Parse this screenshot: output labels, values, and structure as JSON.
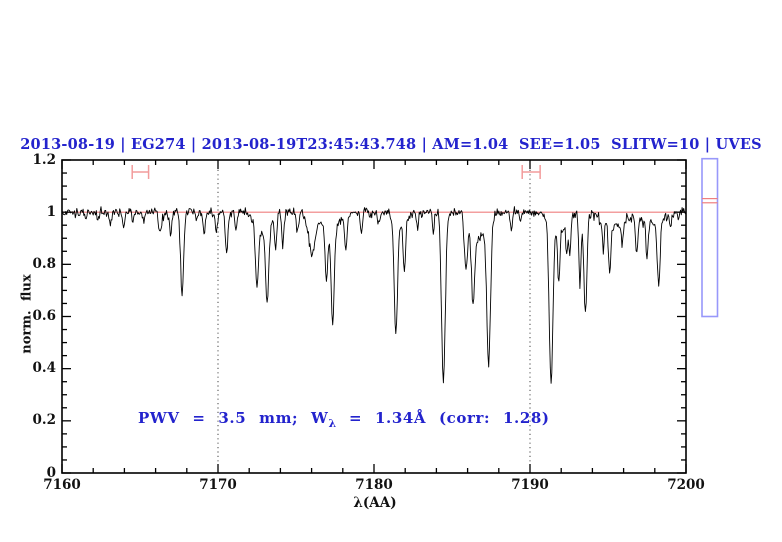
{
  "header": {
    "title": "2013-08-19 | EG274 | 2013-08-19T23:45:43.748 | AM=1.04  SEE=1.05  SLITW=10 | UVES",
    "color": "#2323cd"
  },
  "annotation": {
    "prefix": "PWV = 3.5 mm; W",
    "sub": "λ",
    "suffix": " = 1.34Å (corr: 1.28)",
    "color": "#2323cd"
  },
  "colors": {
    "accent_blue": "#2323cd",
    "spectrum": "#000000",
    "continuum_red": "#ef7f7f",
    "marker_red": "#f29b9b",
    "gauge_border_blue": "#9898fa",
    "guide_dotted": "#444444",
    "frame": "#000000",
    "background": "#ffffff"
  },
  "chart_data": {
    "type": "line",
    "title": "2013-08-19 | EG274 | 2013-08-19T23:45:43.748 | AM=1.04  SEE=1.05  SLITW=10 | UVES",
    "xlabel": "λ(AA)",
    "ylabel": "norm. flux",
    "xlim": [
      7160,
      7200
    ],
    "ylim": [
      0,
      1.2
    ],
    "grid": false,
    "legend": "none",
    "x_tick_labels": [
      "7160",
      "7170",
      "7180",
      "7190",
      "7200"
    ],
    "x_major_ticks": [
      7160,
      7170,
      7180,
      7190,
      7200
    ],
    "x_minor_step": 2,
    "y_tick_labels": [
      "0",
      "0.2",
      "0.4",
      "0.6",
      "0.8",
      "1",
      "1.2"
    ],
    "y_major_ticks": [
      0,
      0.2,
      0.4,
      0.6,
      0.8,
      1.0,
      1.2
    ],
    "y_minor_step": 0.05,
    "continuum_level": 1.0,
    "dotted_guides_x": [
      7170,
      7190
    ],
    "range_markers": [
      {
        "x_start": 7164.5,
        "x_end": 7165.55,
        "y": 1.154
      },
      {
        "x_start": 7189.5,
        "x_end": 7190.65,
        "y": 1.154
      }
    ],
    "side_gauge": {
      "top_flux": 1.205,
      "bottom_flux": 0.6,
      "line_flux": [
        1.052,
        1.036
      ]
    },
    "noise_sigma": 0.009,
    "noise_seed": 1337,
    "sample_step_aa": 0.05,
    "absorption_lines": [
      {
        "center": 7161.5,
        "min_flux": 0.978,
        "sigma": 0.06
      },
      {
        "center": 7162.3,
        "min_flux": 0.972,
        "sigma": 0.06
      },
      {
        "center": 7163.1,
        "min_flux": 0.958,
        "sigma": 0.07
      },
      {
        "center": 7163.95,
        "min_flux": 0.945,
        "sigma": 0.08
      },
      {
        "center": 7164.55,
        "min_flux": 0.962,
        "sigma": 0.06
      },
      {
        "center": 7165.25,
        "min_flux": 0.965,
        "sigma": 0.06
      },
      {
        "center": 7166.3,
        "min_flux": 0.93,
        "sigma": 0.1
      },
      {
        "center": 7166.95,
        "min_flux": 0.92,
        "sigma": 0.07
      },
      {
        "center": 7167.7,
        "min_flux": 0.7,
        "sigma": 0.1
      },
      {
        "center": 7168.6,
        "min_flux": 0.965,
        "sigma": 0.06
      },
      {
        "center": 7169.1,
        "min_flux": 0.918,
        "sigma": 0.08
      },
      {
        "center": 7169.9,
        "min_flux": 0.93,
        "sigma": 0.07
      },
      {
        "center": 7170.55,
        "min_flux": 0.84,
        "sigma": 0.09
      },
      {
        "center": 7171.15,
        "min_flux": 0.925,
        "sigma": 0.07
      },
      {
        "center": 7172.5,
        "min_flux": 0.775,
        "sigma": 0.1
      },
      {
        "center": 7173.15,
        "min_flux": 0.715,
        "sigma": 0.1
      },
      {
        "center": 7173.7,
        "min_flux": 0.875,
        "sigma": 0.07
      },
      {
        "center": 7174.15,
        "min_flux": 0.88,
        "sigma": 0.07
      },
      {
        "center": 7175.1,
        "min_flux": 0.93,
        "sigma": 0.08
      },
      {
        "center": 7176.0,
        "min_flux": 0.85,
        "sigma": 0.22
      },
      {
        "center": 7176.95,
        "min_flux": 0.8,
        "sigma": 0.09
      },
      {
        "center": 7177.35,
        "min_flux": 0.625,
        "sigma": 0.1
      },
      {
        "center": 7178.2,
        "min_flux": 0.875,
        "sigma": 0.08
      },
      {
        "center": 7179.2,
        "min_flux": 0.93,
        "sigma": 0.08
      },
      {
        "center": 7180.3,
        "min_flux": 0.955,
        "sigma": 0.07
      },
      {
        "center": 7181.4,
        "min_flux": 0.56,
        "sigma": 0.1
      },
      {
        "center": 7181.95,
        "min_flux": 0.82,
        "sigma": 0.08
      },
      {
        "center": 7182.8,
        "min_flux": 0.94,
        "sigma": 0.06
      },
      {
        "center": 7183.8,
        "min_flux": 0.925,
        "sigma": 0.06
      },
      {
        "center": 7184.45,
        "min_flux": 0.335,
        "sigma": 0.12
      },
      {
        "center": 7185.9,
        "min_flux": 0.8,
        "sigma": 0.1
      },
      {
        "center": 7186.35,
        "min_flux": 0.71,
        "sigma": 0.1
      },
      {
        "center": 7187.35,
        "min_flux": 0.45,
        "sigma": 0.12
      },
      {
        "center": 7188.8,
        "min_flux": 0.93,
        "sigma": 0.06
      },
      {
        "center": 7189.4,
        "min_flux": 0.96,
        "sigma": 0.05
      },
      {
        "center": 7191.35,
        "min_flux": 0.38,
        "sigma": 0.12
      },
      {
        "center": 7191.85,
        "min_flux": 0.79,
        "sigma": 0.08
      },
      {
        "center": 7192.35,
        "min_flux": 0.875,
        "sigma": 0.06
      },
      {
        "center": 7192.55,
        "min_flux": 0.86,
        "sigma": 0.06
      },
      {
        "center": 7193.2,
        "min_flux": 0.72,
        "sigma": 0.07
      },
      {
        "center": 7193.55,
        "min_flux": 0.62,
        "sigma": 0.1
      },
      {
        "center": 7194.7,
        "min_flux": 0.88,
        "sigma": 0.06
      },
      {
        "center": 7195.1,
        "min_flux": 0.815,
        "sigma": 0.08
      },
      {
        "center": 7195.9,
        "min_flux": 0.91,
        "sigma": 0.06
      },
      {
        "center": 7196.85,
        "min_flux": 0.85,
        "sigma": 0.08
      },
      {
        "center": 7197.5,
        "min_flux": 0.845,
        "sigma": 0.07
      },
      {
        "center": 7198.25,
        "min_flux": 0.765,
        "sigma": 0.09
      },
      {
        "center": 7199.0,
        "min_flux": 0.955,
        "sigma": 0.06
      },
      {
        "center": 7199.5,
        "min_flux": 0.958,
        "sigma": 0.05
      },
      {
        "center": 7172.9,
        "min_flux": 0.93,
        "sigma": 0.5
      },
      {
        "center": 7177.2,
        "min_flux": 0.94,
        "sigma": 0.6
      },
      {
        "center": 7181.7,
        "min_flux": 0.95,
        "sigma": 0.4
      },
      {
        "center": 7186.7,
        "min_flux": 0.9,
        "sigma": 0.45
      },
      {
        "center": 7191.9,
        "min_flux": 0.94,
        "sigma": 0.5
      },
      {
        "center": 7195.5,
        "min_flux": 0.95,
        "sigma": 0.8
      },
      {
        "center": 7198.0,
        "min_flux": 0.95,
        "sigma": 0.5
      }
    ]
  }
}
